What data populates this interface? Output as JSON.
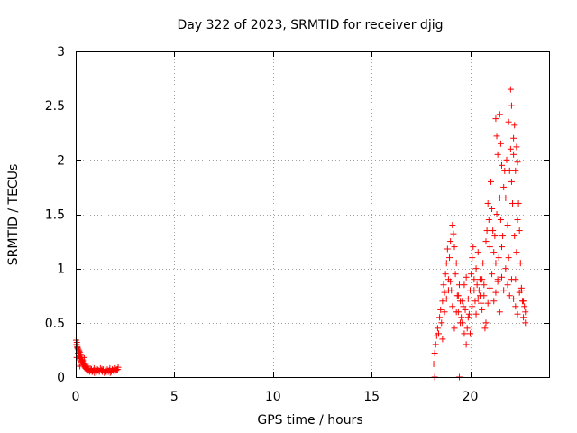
{
  "chart_data": {
    "type": "scatter",
    "title": "Day 322 of 2023, SRMTID for receiver djig",
    "xlabel": "GPS time / hours",
    "ylabel": "SRMTID / TECUs",
    "xlim": [
      0,
      24
    ],
    "ylim": [
      0,
      3
    ],
    "xticks": [
      0,
      5,
      10,
      15,
      20
    ],
    "yticks": [
      0,
      0.5,
      1,
      1.5,
      2,
      2.5,
      3
    ],
    "xtick_labels": [
      "0",
      "5",
      "10",
      "15",
      "20"
    ],
    "ytick_labels": [
      "0",
      "0.5",
      "1",
      "1.5",
      "2",
      "2.5",
      "3"
    ],
    "grid": true,
    "marker": "+",
    "series": [
      {
        "name": "djig",
        "color": "#ff0000",
        "x": [
          0.02,
          0.04,
          0.06,
          0.08,
          0.1,
          0.12,
          0.14,
          0.16,
          0.18,
          0.2,
          0.22,
          0.24,
          0.26,
          0.28,
          0.3,
          0.32,
          0.34,
          0.36,
          0.38,
          0.4,
          0.42,
          0.44,
          0.46,
          0.48,
          0.5,
          0.52,
          0.55,
          0.58,
          0.6,
          0.65,
          0.7,
          0.75,
          0.8,
          0.85,
          0.9,
          0.95,
          1.0,
          1.05,
          1.1,
          1.15,
          1.2,
          1.25,
          1.3,
          1.35,
          1.4,
          1.45,
          1.5,
          1.55,
          1.6,
          1.65,
          1.7,
          1.75,
          1.8,
          1.85,
          1.9,
          1.95,
          2.0,
          2.05,
          2.1,
          2.15,
          0.05,
          0.09,
          0.13,
          0.17,
          0.21,
          0.27,
          0.33,
          0.43,
          0.53,
          0.63,
          0.73,
          0.83,
          0.93,
          1.13,
          1.33,
          1.53,
          1.73,
          1.93,
          2.12,
          18.15,
          18.2,
          18.25,
          18.3,
          18.35,
          18.4,
          18.45,
          18.5,
          18.55,
          18.6,
          18.65,
          18.7,
          18.75,
          18.8,
          18.85,
          18.9,
          18.95,
          19.0,
          19.05,
          19.1,
          19.15,
          19.2,
          19.25,
          19.3,
          19.35,
          19.4,
          19.45,
          19.5,
          19.55,
          19.6,
          19.65,
          19.7,
          19.75,
          19.8,
          19.85,
          19.9,
          19.95,
          20.0,
          20.05,
          20.1,
          20.15,
          20.2,
          20.25,
          20.3,
          20.35,
          20.4,
          20.45,
          20.5,
          20.55,
          20.6,
          20.65,
          20.7,
          20.75,
          20.8,
          20.85,
          20.9,
          20.95,
          21.0,
          21.05,
          21.1,
          21.15,
          21.2,
          21.25,
          21.3,
          21.35,
          21.4,
          21.45,
          21.5,
          21.55,
          21.6,
          21.65,
          21.7,
          21.75,
          21.8,
          21.85,
          21.9,
          21.95,
          22.0,
          22.05,
          22.1,
          22.15,
          22.2,
          22.25,
          22.3,
          22.35,
          22.4,
          22.45,
          22.5,
          22.55,
          22.6,
          22.65,
          22.7,
          22.75,
          22.8,
          18.6,
          18.7,
          18.8,
          18.9,
          19.0,
          19.1,
          19.2,
          19.3,
          19.4,
          19.5,
          19.6,
          19.7,
          19.8,
          19.9,
          20.0,
          20.1,
          20.2,
          20.3,
          20.4,
          20.5,
          20.6,
          20.7,
          20.8,
          20.9,
          21.0,
          21.1,
          21.2,
          21.3,
          21.4,
          21.5,
          21.6,
          21.7,
          21.8,
          21.9,
          22.0,
          22.1,
          22.2,
          22.3,
          22.4,
          22.5,
          22.6,
          22.7,
          22.8,
          21.3,
          21.35,
          21.4,
          21.5,
          21.55,
          21.6,
          21.95,
          22.05,
          22.1,
          22.2,
          22.25,
          22.3,
          22.35,
          22.4,
          18.2,
          19.45
        ],
        "y": [
          0.34,
          0.3,
          0.32,
          0.28,
          0.26,
          0.22,
          0.25,
          0.2,
          0.19,
          0.23,
          0.17,
          0.21,
          0.15,
          0.18,
          0.14,
          0.16,
          0.12,
          0.15,
          0.11,
          0.13,
          0.1,
          0.12,
          0.09,
          0.1,
          0.08,
          0.09,
          0.07,
          0.08,
          0.06,
          0.07,
          0.05,
          0.06,
          0.07,
          0.05,
          0.06,
          0.04,
          0.06,
          0.05,
          0.07,
          0.06,
          0.05,
          0.08,
          0.06,
          0.05,
          0.07,
          0.04,
          0.06,
          0.05,
          0.07,
          0.05,
          0.06,
          0.04,
          0.05,
          0.07,
          0.06,
          0.05,
          0.08,
          0.06,
          0.07,
          0.09,
          0.18,
          0.27,
          0.12,
          0.24,
          0.1,
          0.2,
          0.14,
          0.18,
          0.08,
          0.1,
          0.07,
          0.05,
          0.08,
          0.06,
          0.07,
          0.05,
          0.08,
          0.06,
          0.07,
          0.12,
          0.22,
          0.3,
          0.38,
          0.45,
          0.4,
          0.55,
          0.62,
          0.5,
          0.7,
          0.85,
          0.78,
          0.95,
          1.05,
          1.18,
          0.9,
          1.1,
          1.25,
          0.8,
          1.4,
          1.32,
          1.2,
          0.95,
          1.05,
          0.75,
          0.6,
          0.85,
          0.7,
          0.55,
          0.5,
          0.65,
          0.4,
          0.62,
          0.3,
          0.45,
          0.72,
          0.58,
          0.8,
          0.95,
          1.1,
          1.2,
          0.9,
          0.7,
          1.0,
          0.85,
          1.15,
          0.8,
          0.75,
          0.68,
          0.9,
          1.05,
          0.85,
          0.45,
          1.25,
          1.35,
          1.6,
          1.45,
          1.2,
          1.8,
          1.55,
          1.35,
          1.15,
          1.3,
          1.05,
          1.5,
          0.9,
          1.1,
          1.65,
          1.45,
          1.2,
          1.3,
          1.75,
          1.9,
          1.65,
          2.0,
          1.4,
          1.1,
          1.9,
          2.1,
          1.8,
          1.6,
          2.05,
          1.3,
          0.9,
          1.15,
          1.45,
          1.6,
          1.35,
          1.05,
          0.8,
          0.7,
          0.55,
          0.65,
          0.5,
          0.35,
          0.6,
          0.72,
          0.8,
          0.88,
          0.65,
          0.45,
          0.6,
          0.75,
          0.5,
          0.7,
          0.85,
          0.92,
          0.55,
          0.4,
          0.65,
          0.8,
          0.58,
          0.72,
          0.9,
          0.62,
          0.75,
          0.5,
          0.68,
          0.82,
          0.95,
          0.7,
          0.78,
          0.88,
          0.6,
          0.92,
          0.8,
          1.0,
          0.85,
          0.75,
          0.9,
          0.72,
          0.65,
          0.58,
          0.78,
          0.82,
          0.7,
          0.6,
          2.38,
          2.22,
          2.05,
          2.42,
          2.15,
          1.95,
          2.35,
          2.65,
          2.5,
          2.2,
          2.32,
          1.9,
          2.12,
          1.98,
          0.0,
          0.0
        ]
      }
    ]
  }
}
